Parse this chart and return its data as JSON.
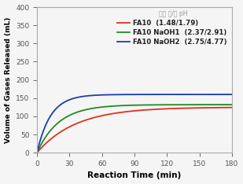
{
  "xlabel": "Reaction Time (min)",
  "ylabel": "Volume of Gases Released (mL)",
  "xlim": [
    0,
    180
  ],
  "ylim": [
    0,
    400
  ],
  "xticks": [
    0,
    30,
    60,
    90,
    120,
    150,
    180
  ],
  "yticks": [
    0,
    50,
    100,
    150,
    200,
    250,
    300,
    350,
    400
  ],
  "series": [
    {
      "name": "FA10",
      "ph_label": "(1.48/1.79)",
      "color": "#e03020",
      "saturation_volume": 125,
      "rate_constant": 0.028
    },
    {
      "name": "FA10 NaOH1",
      "ph_label": "(2.37/2.91)",
      "color": "#228b22",
      "saturation_volume": 132,
      "rate_constant": 0.05
    },
    {
      "name": "FA10 NaOH2",
      "ph_label": "(2.75/4.77)",
      "color": "#1a3eaa",
      "saturation_volume": 160,
      "rate_constant": 0.08
    }
  ],
  "legend_header": "반응 전/후 pH",
  "background_color": "#f5f5f5",
  "plot_bg": "#f5f5f5"
}
